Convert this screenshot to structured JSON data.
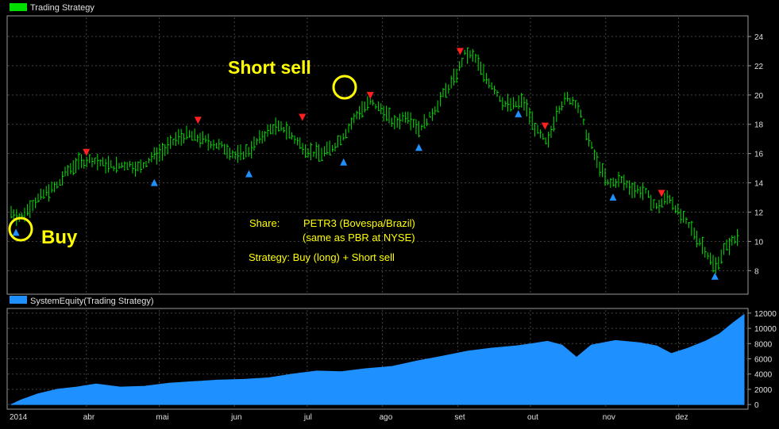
{
  "top_panel": {
    "legend_label": "Trading Strategy",
    "legend_color": "#00e000"
  },
  "bottom_panel": {
    "legend_label": "SystemEquity(Trading Strategy)",
    "legend_color": "#1e90ff"
  },
  "annotations": {
    "short_sell": "Short sell",
    "buy": "Buy",
    "share_label": "Share:",
    "share_value": "PETR3 (Bovespa/Brazil)",
    "share_note": "(same as PBR at NYSE)",
    "strategy": "Strategy: Buy (long) + Short sell",
    "highlight_color": "#ffff00"
  },
  "colors": {
    "price_bars": "#00e000",
    "buy_marker": "#1e90ff",
    "sell_marker": "#ff2020",
    "equity_fill": "#1e90ff",
    "grid": "#444444",
    "axis_text": "#e0e0e0"
  },
  "chart_data": [
    {
      "type": "line",
      "series": [
        {
          "name": "Trading Strategy",
          "values": [
            [
              "2014-03-01",
              12.0
            ],
            [
              "2014-03-05",
              11.6
            ],
            [
              "2014-03-10",
              12.6
            ],
            [
              "2014-03-15",
              13.3
            ],
            [
              "2014-03-20",
              13.8
            ],
            [
              "2014-03-24",
              14.8
            ],
            [
              "2014-03-28",
              15.3
            ],
            [
              "2014-04-03",
              15.6
            ],
            [
              "2014-04-08",
              15.3
            ],
            [
              "2014-04-13",
              15.1
            ],
            [
              "2014-04-18",
              15.3
            ],
            [
              "2014-04-23",
              15.0
            ],
            [
              "2014-04-28",
              15.8
            ],
            [
              "2014-05-03",
              16.2
            ],
            [
              "2014-05-08",
              17.0
            ],
            [
              "2014-05-13",
              17.3
            ],
            [
              "2014-05-18",
              17.0
            ],
            [
              "2014-05-23",
              16.7
            ],
            [
              "2014-05-28",
              16.4
            ],
            [
              "2014-06-02",
              15.8
            ],
            [
              "2014-06-07",
              16.2
            ],
            [
              "2014-06-12",
              17.1
            ],
            [
              "2014-06-17",
              17.8
            ],
            [
              "2014-06-22",
              17.7
            ],
            [
              "2014-06-27",
              16.8
            ],
            [
              "2014-07-02",
              16.1
            ],
            [
              "2014-07-07",
              16.0
            ],
            [
              "2014-07-12",
              16.5
            ],
            [
              "2014-07-17",
              17.5
            ],
            [
              "2014-07-22",
              18.8
            ],
            [
              "2014-07-27",
              19.5
            ],
            [
              "2014-08-01",
              19.0
            ],
            [
              "2014-08-06",
              18.0
            ],
            [
              "2014-08-11",
              18.7
            ],
            [
              "2014-08-16",
              17.7
            ],
            [
              "2014-08-21",
              18.6
            ],
            [
              "2014-08-26",
              20.0
            ],
            [
              "2014-08-31",
              21.2
            ],
            [
              "2014-09-04",
              22.8
            ],
            [
              "2014-09-08",
              22.6
            ],
            [
              "2014-09-12",
              21.3
            ],
            [
              "2014-09-16",
              20.5
            ],
            [
              "2014-09-20",
              19.4
            ],
            [
              "2014-09-24",
              19.3
            ],
            [
              "2014-09-28",
              19.6
            ],
            [
              "2014-10-03",
              17.7
            ],
            [
              "2014-10-08",
              16.6
            ],
            [
              "2014-10-12",
              19.0
            ],
            [
              "2014-10-16",
              19.8
            ],
            [
              "2014-10-20",
              19.5
            ],
            [
              "2014-10-24",
              17.4
            ],
            [
              "2014-10-28",
              15.6
            ],
            [
              "2014-11-02",
              13.9
            ],
            [
              "2014-11-07",
              14.2
            ],
            [
              "2014-11-12",
              13.6
            ],
            [
              "2014-11-17",
              13.4
            ],
            [
              "2014-11-22",
              12.3
            ],
            [
              "2014-11-27",
              13.1
            ],
            [
              "2014-12-02",
              11.7
            ],
            [
              "2014-12-07",
              10.7
            ],
            [
              "2014-12-12",
              9.4
            ],
            [
              "2014-12-16",
              8.2
            ],
            [
              "2014-12-20",
              9.5
            ],
            [
              "2014-12-26",
              10.4
            ]
          ]
        }
      ],
      "buy_signals": [
        [
          "2014-03-03",
          10.6
        ],
        [
          "2014-04-29",
          14.0
        ],
        [
          "2014-06-07",
          14.6
        ],
        [
          "2014-07-16",
          15.4
        ],
        [
          "2014-08-16",
          16.4
        ],
        [
          "2014-09-26",
          18.7
        ],
        [
          "2014-11-04",
          13.0
        ],
        [
          "2014-12-16",
          7.6
        ]
      ],
      "sell_signals": [
        [
          "2014-04-01",
          16.1
        ],
        [
          "2014-05-17",
          18.3
        ],
        [
          "2014-06-29",
          18.5
        ],
        [
          "2014-07-27",
          20.0
        ],
        [
          "2014-09-02",
          23.0
        ],
        [
          "2014-10-07",
          17.9
        ],
        [
          "2014-11-24",
          13.3
        ]
      ],
      "y_ticks": [
        8,
        10,
        12,
        14,
        16,
        18,
        20,
        22,
        24
      ],
      "ylim": [
        6.5,
        25.3
      ],
      "grid": true,
      "legend": "top-left"
    },
    {
      "type": "area",
      "series": [
        {
          "name": "SystemEquity(Trading Strategy)",
          "values": [
            [
              "2014-03-01",
              0
            ],
            [
              "2014-03-05",
              600
            ],
            [
              "2014-03-12",
              1400
            ],
            [
              "2014-03-20",
              2000
            ],
            [
              "2014-03-28",
              2300
            ],
            [
              "2014-04-05",
              2700
            ],
            [
              "2014-04-15",
              2300
            ],
            [
              "2014-04-25",
              2400
            ],
            [
              "2014-05-05",
              2800
            ],
            [
              "2014-05-15",
              3000
            ],
            [
              "2014-05-25",
              3200
            ],
            [
              "2014-06-05",
              3300
            ],
            [
              "2014-06-15",
              3500
            ],
            [
              "2014-06-25",
              4000
            ],
            [
              "2014-07-05",
              4400
            ],
            [
              "2014-07-15",
              4300
            ],
            [
              "2014-07-25",
              4700
            ],
            [
              "2014-08-05",
              5000
            ],
            [
              "2014-08-15",
              5700
            ],
            [
              "2014-08-25",
              6300
            ],
            [
              "2014-09-05",
              7000
            ],
            [
              "2014-09-15",
              7400
            ],
            [
              "2014-09-25",
              7700
            ],
            [
              "2014-10-02",
              8000
            ],
            [
              "2014-10-08",
              8300
            ],
            [
              "2014-10-14",
              7800
            ],
            [
              "2014-10-20",
              6200
            ],
            [
              "2014-10-26",
              7800
            ],
            [
              "2014-11-05",
              8400
            ],
            [
              "2014-11-15",
              8100
            ],
            [
              "2014-11-22",
              7700
            ],
            [
              "2014-11-28",
              6700
            ],
            [
              "2014-12-05",
              7400
            ],
            [
              "2014-12-12",
              8300
            ],
            [
              "2014-12-18",
              9300
            ],
            [
              "2014-12-23",
              10600
            ],
            [
              "2014-12-28",
              11800
            ]
          ]
        }
      ],
      "y_ticks": [
        0,
        2000,
        4000,
        6000,
        8000,
        10000,
        12000
      ],
      "ylim": [
        -400,
        12400
      ],
      "grid": true,
      "legend": "top-left"
    }
  ],
  "x_axis": {
    "ticks": [
      {
        "label": "2014",
        "date": "2014-03-01"
      },
      {
        "label": "abr",
        "date": "2014-04-01"
      },
      {
        "label": "mai",
        "date": "2014-05-01"
      },
      {
        "label": "jun",
        "date": "2014-06-01"
      },
      {
        "label": "jul",
        "date": "2014-07-01"
      },
      {
        "label": "ago",
        "date": "2014-08-01"
      },
      {
        "label": "set",
        "date": "2014-09-01"
      },
      {
        "label": "out",
        "date": "2014-10-01"
      },
      {
        "label": "nov",
        "date": "2014-11-01"
      },
      {
        "label": "dez",
        "date": "2014-12-01"
      }
    ],
    "range": [
      "2014-03-01",
      "2014-12-28"
    ]
  }
}
